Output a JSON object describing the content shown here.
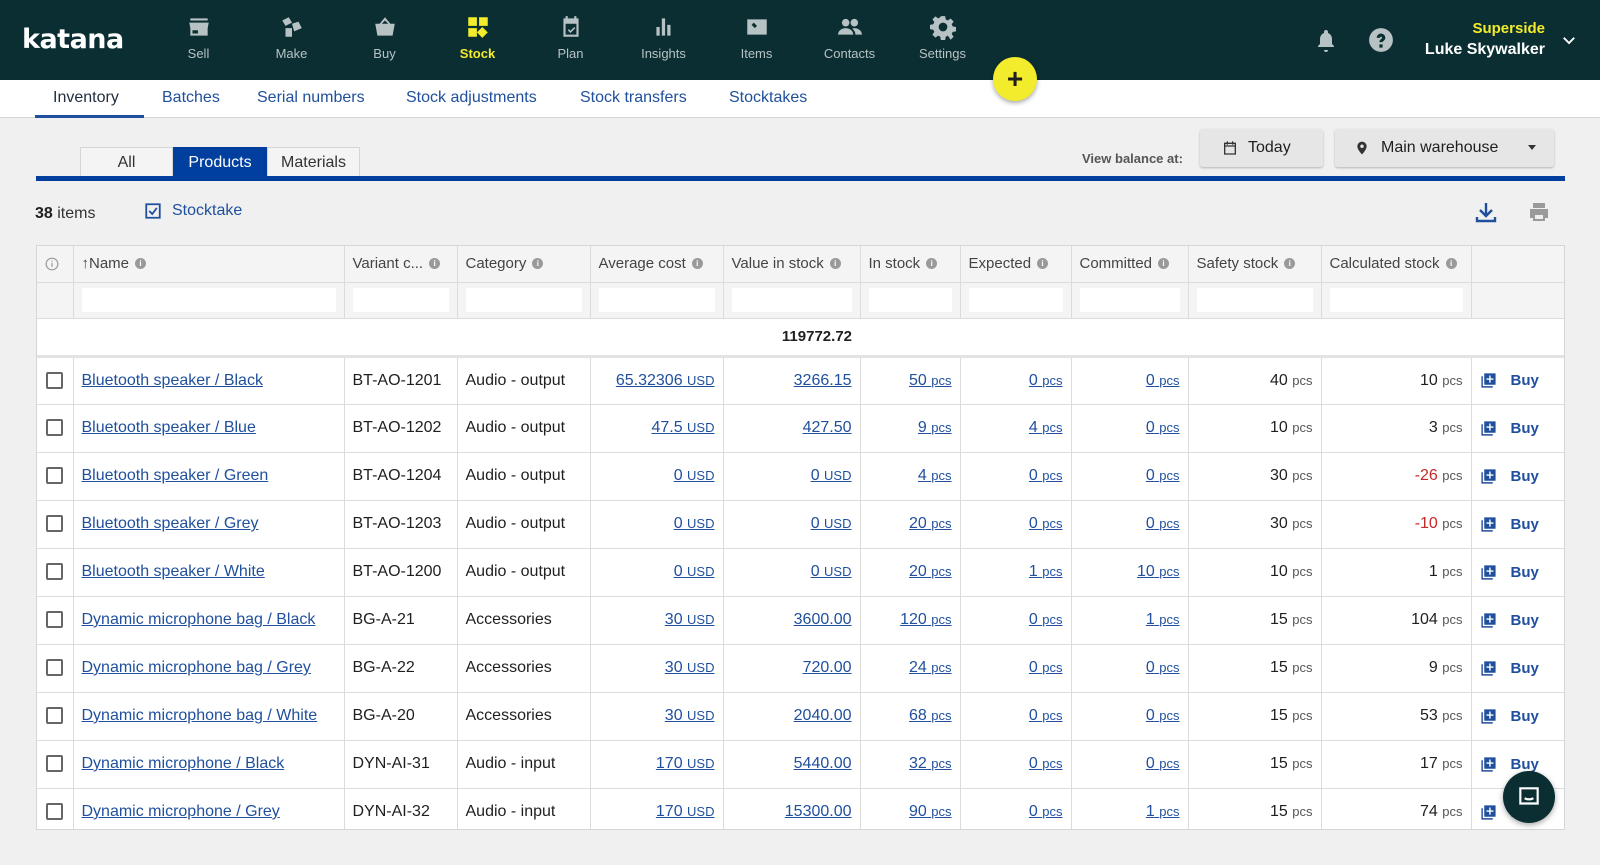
{
  "app": {
    "logo": "katana"
  },
  "nav": [
    {
      "label": "Sell",
      "icon": "store-icon"
    },
    {
      "label": "Make",
      "icon": "make-icon"
    },
    {
      "label": "Buy",
      "icon": "basket-icon"
    },
    {
      "label": "Stock",
      "icon": "stock-icon",
      "active": true
    },
    {
      "label": "Plan",
      "icon": "calendar-check-icon"
    },
    {
      "label": "Insights",
      "icon": "bar-chart-icon"
    },
    {
      "label": "Items",
      "icon": "items-icon"
    },
    {
      "label": "Contacts",
      "icon": "contacts-icon"
    },
    {
      "label": "Settings",
      "icon": "gear-icon"
    }
  ],
  "user": {
    "org": "Superside",
    "name": "Luke Skywalker"
  },
  "fab_label": "+",
  "subnav": [
    "Inventory",
    "Batches",
    "Serial numbers",
    "Stock adjustments",
    "Stock transfers",
    "Stocktakes"
  ],
  "segments": [
    "All",
    "Products",
    "Materials"
  ],
  "view_balance_label": "View balance at:",
  "today_label": "Today",
  "warehouse_label": "Main warehouse",
  "count": {
    "number": "38",
    "label": " items"
  },
  "stocktake_label": "Stocktake",
  "columns": [
    "Name",
    "Variant c...",
    "Category",
    "Average cost",
    "Value in stock",
    "In stock",
    "Expected",
    "Committed",
    "Safety stock",
    "Calculated stock"
  ],
  "total_value": "119772.72",
  "unit_usd": "USD",
  "unit_pcs": "pcs",
  "buy_label": "Buy",
  "rows": [
    {
      "name": "Bluetooth speaker / Black",
      "variant": "BT-AO-1201",
      "category": "Audio - output",
      "avg_cost": "65.32306",
      "value": "3266.15",
      "in_stock": "50",
      "expected": "0",
      "committed": "0",
      "safety": "40",
      "calculated": "10"
    },
    {
      "name": "Bluetooth speaker / Blue",
      "variant": "BT-AO-1202",
      "category": "Audio - output",
      "avg_cost": "47.5",
      "value": "427.50",
      "in_stock": "9",
      "expected": "4",
      "committed": "0",
      "safety": "10",
      "calculated": "3"
    },
    {
      "name": "Bluetooth speaker / Green",
      "variant": "BT-AO-1204",
      "category": "Audio - output",
      "avg_cost": "0",
      "value": "0",
      "value_usd": true,
      "in_stock": "4",
      "expected": "0",
      "committed": "0",
      "safety": "30",
      "calculated": "-26"
    },
    {
      "name": "Bluetooth speaker / Grey",
      "variant": "BT-AO-1203",
      "category": "Audio - output",
      "avg_cost": "0",
      "value": "0",
      "value_usd": true,
      "in_stock": "20",
      "expected": "0",
      "committed": "0",
      "safety": "30",
      "calculated": "-10"
    },
    {
      "name": "Bluetooth speaker / White",
      "variant": "BT-AO-1200",
      "category": "Audio - output",
      "avg_cost": "0",
      "value": "0",
      "value_usd": true,
      "in_stock": "20",
      "expected": "1",
      "committed": "10",
      "safety": "10",
      "calculated": "1"
    },
    {
      "name": "Dynamic microphone bag / Black",
      "variant": "BG-A-21",
      "category": "Accessories",
      "avg_cost": "30",
      "value": "3600.00",
      "in_stock": "120",
      "expected": "0",
      "committed": "1",
      "safety": "15",
      "calculated": "104"
    },
    {
      "name": "Dynamic microphone bag / Grey",
      "variant": "BG-A-22",
      "category": "Accessories",
      "avg_cost": "30",
      "value": "720.00",
      "in_stock": "24",
      "expected": "0",
      "committed": "0",
      "safety": "15",
      "calculated": "9"
    },
    {
      "name": "Dynamic microphone bag / White",
      "variant": "BG-A-20",
      "category": "Accessories",
      "avg_cost": "30",
      "value": "2040.00",
      "in_stock": "68",
      "expected": "0",
      "committed": "0",
      "safety": "15",
      "calculated": "53"
    },
    {
      "name": "Dynamic microphone / Black",
      "variant": "DYN-AI-31",
      "category": "Audio - input",
      "avg_cost": "170",
      "value": "5440.00",
      "in_stock": "32",
      "expected": "0",
      "committed": "0",
      "safety": "15",
      "calculated": "17"
    },
    {
      "name": "Dynamic microphone / Grey",
      "variant": "DYN-AI-32",
      "category": "Audio - input",
      "avg_cost": "170",
      "value": "15300.00",
      "in_stock": "90",
      "expected": "0",
      "committed": "1",
      "safety": "15",
      "calculated": "74"
    }
  ],
  "colors": {
    "topbar": "#0b2e33",
    "accent": "#f2ec2c",
    "link": "#1f4f9d",
    "segment_active": "#003f9e",
    "negative": "#c62828"
  }
}
